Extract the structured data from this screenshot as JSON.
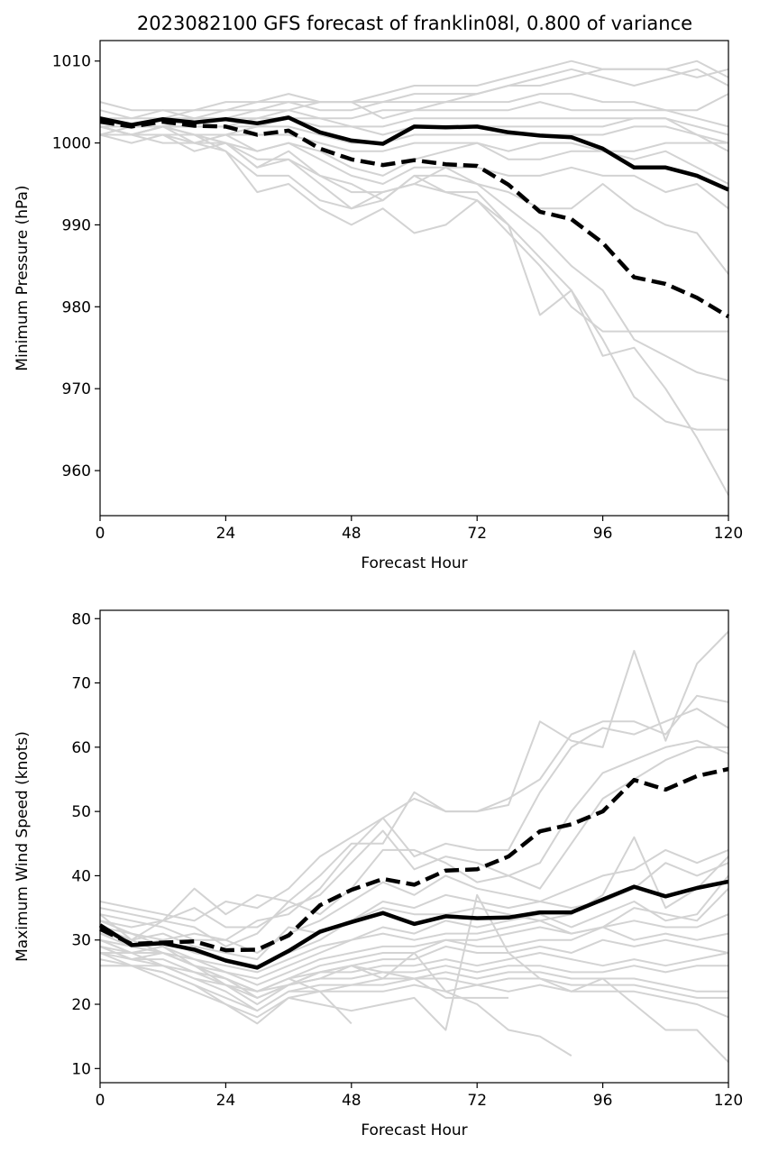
{
  "colors": {
    "member": "#d3d3d3",
    "mean": "#000000",
    "background": "#ffffff"
  },
  "chart_data": [
    {
      "type": "line",
      "title": "2023082100 GFS forecast of franklin08l, 0.800 of variance",
      "xlabel": "Forecast Hour",
      "ylabel": "Minimum Pressure (hPa)",
      "xlim": [
        0,
        120
      ],
      "ylim": [
        954.5,
        1012.5
      ],
      "xticks": [
        0,
        24,
        48,
        72,
        96,
        120
      ],
      "yticks": [
        960,
        970,
        980,
        990,
        1000,
        1010
      ],
      "grid": false,
      "legend": "none",
      "x": [
        0,
        6,
        12,
        18,
        24,
        30,
        36,
        42,
        48,
        54,
        60,
        66,
        72,
        78,
        84,
        90,
        96,
        102,
        108,
        114,
        120
      ],
      "series": [
        {
          "style": "solid",
          "color": "#000000",
          "values": [
            1003,
            1002.2,
            1002.9,
            1002.5,
            1002.9,
            1002.4,
            1003.1,
            1001.3,
            1000.3,
            999.9,
            1002.0,
            1001.9,
            1002.0,
            1001.3,
            1000.9,
            1000.7,
            999.3,
            997.0,
            997.0,
            996.0,
            994.3
          ]
        },
        {
          "style": "dashed",
          "color": "#000000",
          "values": [
            1002.6,
            1002.0,
            1002.6,
            1002.1,
            1002.0,
            1001.0,
            1001.5,
            999.3,
            998.0,
            997.3,
            997.9,
            997.4,
            997.2,
            994.9,
            991.6,
            990.7,
            987.8,
            983.6,
            982.8,
            981.1,
            978.8
          ]
        }
      ],
      "members": [
        [
          1005,
          1004,
          1004,
          1003,
          1004,
          1005,
          1006,
          1005,
          1005,
          1006,
          1007,
          1007,
          1007,
          1008,
          1009,
          1010,
          1009,
          1009,
          1009,
          1010,
          1008
        ],
        [
          1004,
          1003,
          1004,
          1004,
          1005,
          1005,
          1005,
          1004,
          1004,
          1005,
          1006,
          1006,
          1006,
          1007,
          1008,
          1009,
          1008,
          1007,
          1008,
          1009,
          1007
        ],
        [
          1003,
          1003,
          1003,
          1004,
          1004,
          1004,
          1005,
          1005,
          1005,
          1003,
          1004,
          1005,
          1006,
          1007,
          1007,
          1008,
          1009,
          1009,
          1009,
          1008,
          1009
        ],
        [
          1003,
          1002,
          1003,
          1003,
          1003,
          1004,
          1004,
          1005,
          1005,
          1005,
          1005,
          1005,
          1005,
          1005,
          1006,
          1006,
          1005,
          1005,
          1004,
          1004,
          1006
        ],
        [
          1002,
          1002,
          1002,
          1003,
          1003,
          1003,
          1004,
          1003,
          1003,
          1004,
          1004,
          1004,
          1004,
          1004,
          1005,
          1004,
          1004,
          1004,
          1004,
          1003,
          1002
        ],
        [
          1002,
          1001,
          1002,
          1002,
          1002,
          1002,
          1003,
          1003,
          1002,
          1002,
          1003,
          1003,
          1003,
          1003,
          1003,
          1003,
          1003,
          1003,
          1003,
          1002,
          1001
        ],
        [
          1001,
          1001,
          1002,
          1002,
          1002,
          1003,
          1003,
          1002,
          1002,
          1001,
          1002,
          1002,
          1002,
          1002,
          1002,
          1002,
          1002,
          1003,
          1003,
          1001,
          1000
        ],
        [
          1002,
          1001,
          1001,
          1001,
          1001,
          1002,
          1002,
          1001,
          1000,
          1000,
          1001,
          1001,
          1001,
          1001,
          1001,
          1001,
          1001,
          1002,
          1002,
          1001,
          999
        ],
        [
          1001,
          1001,
          1001,
          1000,
          1001,
          1001,
          1001,
          1000,
          999,
          999,
          1000,
          1000,
          1000,
          999,
          1000,
          1000,
          999,
          999,
          1000,
          1000,
          1000
        ],
        [
          1002,
          1001,
          1002,
          1001,
          1001,
          999,
          1000,
          999,
          997,
          996,
          998,
          999,
          1000,
          998,
          998,
          999,
          999,
          998,
          999,
          997,
          995
        ],
        [
          1002,
          1001,
          1001,
          1001,
          1000,
          999,
          1000,
          998,
          996,
          995,
          997,
          997,
          997,
          996,
          996,
          997,
          996,
          996,
          994,
          995,
          992
        ],
        [
          1001,
          1000,
          1001,
          999,
          1000,
          997,
          999,
          996,
          995,
          993,
          996,
          996,
          995,
          994,
          992,
          992,
          995,
          992,
          990,
          989,
          984
        ],
        [
          1001,
          1001,
          1000,
          1000,
          1000,
          998,
          998,
          995,
          992,
          994,
          995,
          994,
          993,
          989,
          985,
          980,
          977,
          977,
          977,
          977,
          977
        ],
        [
          1002,
          1001,
          1002,
          1000,
          999,
          996,
          996,
          993,
          992,
          993,
          996,
          994,
          994,
          990,
          979,
          982,
          976,
          969,
          966,
          965,
          965
        ],
        [
          1002,
          1001,
          1002,
          1001,
          999,
          994,
          995,
          992,
          990,
          992,
          989,
          990,
          993,
          990,
          986,
          982,
          974,
          975,
          970,
          964,
          957
        ],
        [
          1001,
          1002,
          1002,
          1001,
          1000,
          997,
          998,
          996,
          994,
          994,
          995,
          997,
          995,
          992,
          989,
          985,
          982,
          976,
          974,
          972,
          971
        ]
      ]
    },
    {
      "type": "line",
      "title": "",
      "xlabel": "Forecast Hour",
      "ylabel": "Maximum Wind Speed (knots)",
      "xlim": [
        0,
        120
      ],
      "ylim": [
        7.8,
        81.3
      ],
      "xticks": [
        0,
        24,
        48,
        72,
        96,
        120
      ],
      "yticks": [
        10,
        20,
        30,
        40,
        50,
        60,
        70,
        80
      ],
      "grid": false,
      "legend": "none",
      "x": [
        0,
        6,
        12,
        18,
        24,
        30,
        36,
        42,
        48,
        54,
        60,
        66,
        72,
        78,
        84,
        90,
        96,
        102,
        108,
        114,
        120
      ],
      "series": [
        {
          "style": "solid",
          "color": "#000000",
          "values": [
            32.3,
            29.2,
            29.5,
            28.5,
            26.8,
            25.7,
            28.3,
            31.3,
            32.8,
            34.2,
            32.5,
            33.7,
            33.4,
            33.5,
            34.3,
            34.3,
            36.3,
            38.3,
            36.8,
            38.1,
            39.1
          ]
        },
        {
          "style": "dashed",
          "color": "#000000",
          "values": [
            31.7,
            29.4,
            29.6,
            29.8,
            28.4,
            28.5,
            30.7,
            35.4,
            37.8,
            39.5,
            38.6,
            40.8,
            41.0,
            43.0,
            46.9,
            48.0,
            50.0,
            54.9,
            53.4,
            55.5,
            56.6
          ]
        }
      ],
      "members": [
        [
          36,
          35,
          34,
          33,
          36,
          35,
          38,
          43,
          46,
          49,
          52,
          50,
          50,
          51,
          64,
          61,
          60,
          75,
          61,
          73,
          78
        ],
        [
          35,
          34,
          33,
          38,
          34,
          37,
          36,
          40,
          45,
          45,
          53,
          50,
          50,
          52,
          55,
          62,
          64,
          64,
          62,
          68,
          67
        ],
        [
          34,
          33,
          32,
          30,
          30,
          33,
          34,
          38,
          44,
          49,
          43,
          45,
          44,
          44,
          53,
          60,
          63,
          62,
          64,
          66,
          63
        ],
        [
          33,
          32,
          33,
          35,
          32,
          32,
          35,
          37,
          42,
          47,
          41,
          43,
          42,
          40,
          42,
          50,
          56,
          58,
          60,
          61,
          59
        ],
        [
          34,
          30,
          33,
          32,
          29,
          31,
          36,
          34,
          38,
          44,
          44,
          42,
          39,
          40,
          38,
          45,
          52,
          55,
          58,
          60,
          60
        ],
        [
          32,
          31,
          30,
          31,
          30,
          28,
          31,
          33,
          36,
          39,
          37,
          40,
          38,
          37,
          36,
          38,
          40,
          41,
          44,
          42,
          44
        ],
        [
          31,
          30,
          31,
          29,
          28,
          27,
          32,
          31,
          33,
          36,
          35,
          37,
          36,
          35,
          36,
          35,
          36,
          38,
          42,
          40,
          42
        ],
        [
          30,
          29,
          30,
          28,
          27,
          26,
          28,
          30,
          33,
          35,
          34,
          34,
          35,
          34,
          33,
          34,
          37,
          46,
          35,
          38,
          43
        ],
        [
          30,
          28,
          29,
          27,
          26,
          25,
          27,
          29,
          30,
          32,
          31,
          33,
          32,
          33,
          34,
          32,
          34,
          36,
          33,
          34,
          40
        ],
        [
          30,
          28,
          28,
          27,
          25,
          24,
          26,
          28,
          30,
          31,
          30,
          31,
          31,
          32,
          33,
          31,
          32,
          35,
          34,
          33,
          38
        ],
        [
          29,
          27,
          28,
          26,
          25,
          23,
          25,
          27,
          28,
          29,
          29,
          30,
          30,
          31,
          32,
          31,
          32,
          33,
          32,
          32,
          34
        ],
        [
          29,
          28,
          28,
          26,
          24,
          22,
          24,
          26,
          27,
          28,
          28,
          30,
          29,
          29,
          30,
          30,
          32,
          30,
          31,
          30,
          31
        ],
        [
          29,
          27,
          27,
          25,
          24,
          22,
          24,
          25,
          26,
          27,
          27,
          29,
          28,
          28,
          29,
          28,
          30,
          29,
          30,
          29,
          28
        ],
        [
          28,
          28,
          26,
          25,
          23,
          21,
          23,
          25,
          25,
          26,
          26,
          27,
          26,
          27,
          28,
          27,
          26,
          27,
          26,
          27,
          28
        ],
        [
          28,
          27,
          26,
          24,
          23,
          20,
          23,
          24,
          24,
          25,
          25,
          26,
          25,
          26,
          26,
          25,
          25,
          26,
          25,
          26,
          26
        ],
        [
          28,
          26,
          26,
          24,
          22,
          19,
          22,
          23,
          23,
          24,
          24,
          25,
          24,
          25,
          25,
          24,
          24,
          24,
          23,
          22,
          22
        ],
        [
          27,
          26,
          25,
          23,
          21,
          19,
          22,
          22,
          23,
          23,
          24,
          24,
          23,
          24,
          24,
          23,
          23,
          23,
          22,
          21,
          21
        ],
        [
          26,
          26,
          25,
          23,
          20,
          18,
          21,
          22,
          22,
          22,
          23,
          22,
          23,
          22,
          23,
          22,
          22,
          22,
          21,
          20,
          18
        ],
        [
          26,
          26,
          24,
          22,
          20,
          17,
          21,
          20,
          19,
          20,
          21,
          16,
          37,
          28,
          24,
          22,
          24,
          20,
          16,
          16,
          11
        ],
        [
          33,
          31,
          29,
          26,
          23,
          22,
          24,
          22,
          17,
          null,
          null,
          null,
          null,
          null,
          null,
          null,
          null,
          null,
          null,
          null,
          null
        ],
        [
          32,
          30,
          28,
          26,
          24,
          21,
          23,
          24,
          26,
          25,
          24,
          21,
          21,
          21,
          null,
          null,
          null,
          null,
          null,
          null,
          null
        ],
        [
          31,
          29,
          28,
          26,
          24,
          22,
          23,
          25,
          26,
          24,
          28,
          22,
          20,
          16,
          15,
          12,
          null,
          null,
          null,
          null,
          null
        ]
      ]
    }
  ]
}
